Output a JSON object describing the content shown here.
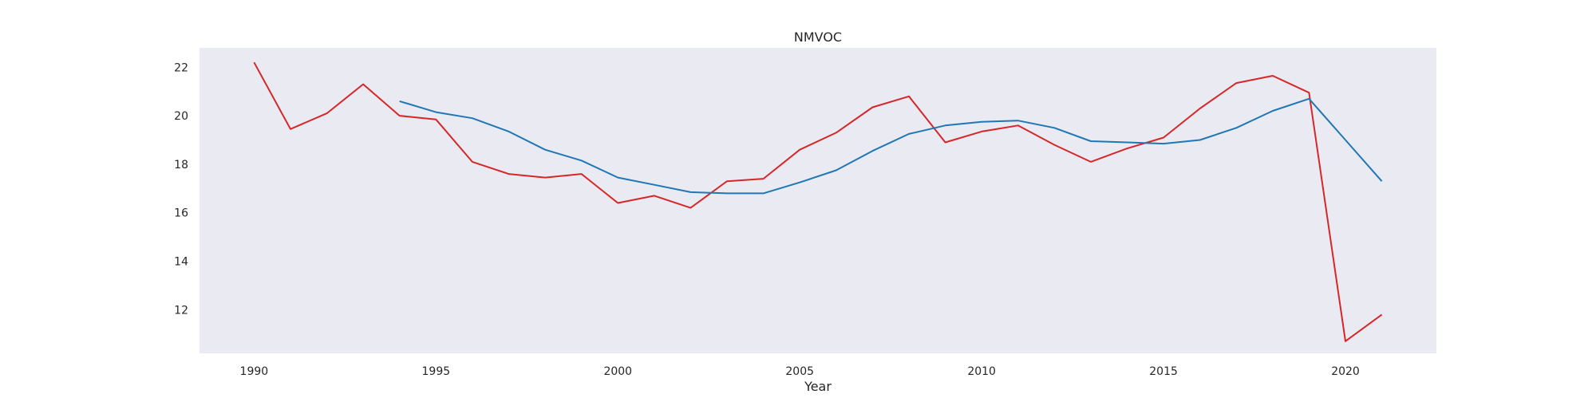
{
  "chart_data": {
    "type": "line",
    "title": "NMVOC",
    "xlabel": "Year",
    "ylabel": "",
    "xlim": [
      1988.5,
      2022.5
    ],
    "ylim": [
      10.2,
      22.8
    ],
    "xticks": [
      1990,
      1995,
      2000,
      2005,
      2010,
      2015,
      2020
    ],
    "yticks": [
      12,
      14,
      16,
      18,
      20,
      22
    ],
    "grid": false,
    "background": "#eaeaf2",
    "series": [
      {
        "color": "#d62728",
        "x": [
          1990,
          1991,
          1992,
          1993,
          1994,
          1995,
          1996,
          1997,
          1998,
          1999,
          2000,
          2001,
          2002,
          2003,
          2004,
          2005,
          2006,
          2007,
          2008,
          2009,
          2010,
          2011,
          2012,
          2013,
          2014,
          2015,
          2016,
          2017,
          2018,
          2019,
          2020,
          2021
        ],
        "values": [
          22.2,
          19.45,
          20.1,
          21.3,
          20.0,
          19.85,
          18.1,
          17.6,
          17.45,
          17.6,
          16.4,
          16.7,
          16.2,
          17.3,
          17.4,
          18.6,
          19.3,
          20.35,
          20.8,
          18.9,
          19.35,
          19.6,
          18.8,
          18.1,
          18.65,
          19.1,
          20.3,
          21.35,
          21.65,
          20.95,
          10.7,
          11.8
        ]
      },
      {
        "color": "#1f77b4",
        "x": [
          1994,
          1995,
          1996,
          1997,
          1998,
          1999,
          2000,
          2001,
          2002,
          2003,
          2004,
          2005,
          2006,
          2007,
          2008,
          2009,
          2010,
          2011,
          2012,
          2013,
          2014,
          2015,
          2016,
          2017,
          2018,
          2019,
          2020,
          2021
        ],
        "values": [
          20.6,
          20.15,
          19.9,
          19.35,
          18.6,
          18.15,
          17.45,
          17.15,
          16.85,
          16.8,
          16.8,
          17.25,
          17.75,
          18.55,
          19.25,
          19.6,
          19.75,
          19.8,
          19.5,
          18.95,
          18.9,
          18.85,
          19.0,
          19.5,
          20.2,
          20.7,
          19.0,
          17.3
        ]
      }
    ]
  }
}
